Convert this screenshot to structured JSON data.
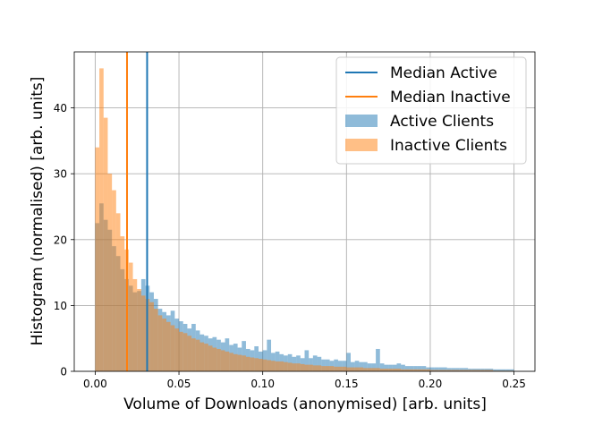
{
  "chart_data": {
    "type": "bar",
    "subtype": "overlapping-histogram",
    "title": "",
    "xlabel": "Volume of Downloads (anonymised) [arb. units]",
    "ylabel": "Histogram (normalised) [arb. units]",
    "xlim": [
      -0.0125,
      0.2625
    ],
    "ylim": [
      0,
      48.5
    ],
    "xticks": [
      0.0,
      0.05,
      0.1,
      0.15,
      0.2,
      0.25
    ],
    "xtick_labels": [
      "0.00",
      "0.05",
      "0.10",
      "0.15",
      "0.20",
      "0.25"
    ],
    "yticks": [
      0,
      10,
      20,
      30,
      40
    ],
    "ytick_labels": [
      "0",
      "10",
      "20",
      "30",
      "40"
    ],
    "grid": true,
    "legend_position": "top-right",
    "bin_start": 0.0,
    "bin_width": 0.0025,
    "series": [
      {
        "name": "Active Clients",
        "kind": "histogram",
        "color": "#1f77b4",
        "alpha": 0.5,
        "values": [
          22.5,
          25.5,
          23.0,
          21.5,
          19.0,
          17.5,
          15.5,
          14.0,
          13.0,
          12.0,
          12.2,
          14.0,
          13.0,
          12.0,
          11.0,
          9.5,
          9.0,
          8.5,
          9.2,
          8.0,
          7.6,
          7.2,
          6.5,
          7.2,
          6.2,
          5.6,
          5.4,
          5.0,
          5.2,
          4.8,
          4.4,
          5.0,
          4.0,
          4.2,
          3.6,
          4.6,
          3.4,
          3.2,
          3.8,
          3.0,
          3.2,
          4.8,
          2.8,
          3.0,
          2.6,
          2.4,
          2.6,
          2.2,
          2.4,
          2.0,
          3.2,
          2.0,
          2.4,
          2.2,
          1.8,
          1.8,
          1.6,
          1.8,
          1.6,
          1.6,
          2.8,
          1.4,
          1.6,
          1.4,
          1.4,
          1.2,
          1.2,
          3.4,
          1.2,
          1.0,
          1.0,
          1.0,
          1.2,
          1.0,
          0.8,
          0.8,
          0.8,
          0.8,
          0.8,
          0.6,
          0.6,
          0.6,
          0.6,
          0.6,
          0.5,
          0.5,
          0.5,
          0.5,
          0.5,
          0.4,
          0.4,
          0.4,
          0.4,
          0.4,
          0.4,
          0.3,
          0.3,
          0.3,
          0.3,
          0.3
        ]
      },
      {
        "name": "Inactive Clients",
        "kind": "histogram",
        "color": "#ff7f0e",
        "alpha": 0.5,
        "values": [
          34.0,
          46.0,
          38.5,
          30.0,
          27.5,
          24.0,
          20.5,
          18.5,
          16.5,
          14.0,
          12.5,
          11.5,
          11.0,
          10.5,
          9.5,
          8.5,
          8.0,
          7.5,
          7.0,
          6.5,
          6.0,
          5.8,
          5.4,
          5.0,
          4.8,
          4.4,
          4.2,
          3.9,
          3.6,
          3.4,
          3.2,
          3.0,
          2.8,
          2.6,
          2.5,
          2.4,
          2.2,
          2.1,
          2.0,
          1.9,
          1.8,
          1.7,
          1.6,
          1.5,
          1.5,
          1.4,
          1.3,
          1.2,
          1.2,
          1.1,
          1.0,
          1.0,
          0.9,
          0.9,
          0.8,
          0.8,
          0.8,
          0.7,
          0.7,
          0.7,
          0.6,
          0.6,
          0.6,
          0.6,
          0.5,
          0.5,
          0.5,
          0.5,
          0.4,
          0.4,
          0.4,
          0.4,
          0.4,
          0.3,
          0.3,
          0.3,
          0.3,
          0.3,
          0.3,
          0.3,
          0.2,
          0.2,
          0.2,
          0.2,
          0.2,
          0.2,
          0.2,
          0.2,
          0.2,
          0.2,
          0.2,
          0.2,
          0.2,
          0.2,
          0.2,
          0.1,
          0.1,
          0.1,
          0.1,
          0.1
        ]
      },
      {
        "name": "Median Active",
        "kind": "vline",
        "color": "#1f77b4",
        "x": 0.031
      },
      {
        "name": "Median Inactive",
        "kind": "vline",
        "color": "#ff7f0e",
        "x": 0.019
      }
    ],
    "legend": [
      {
        "label": "Median Active",
        "style": "line",
        "color": "#1f77b4"
      },
      {
        "label": "Median Inactive",
        "style": "line",
        "color": "#ff7f0e"
      },
      {
        "label": "Active Clients",
        "style": "patch",
        "color": "#1f77b4"
      },
      {
        "label": "Inactive Clients",
        "style": "patch",
        "color": "#ff7f0e"
      }
    ]
  }
}
